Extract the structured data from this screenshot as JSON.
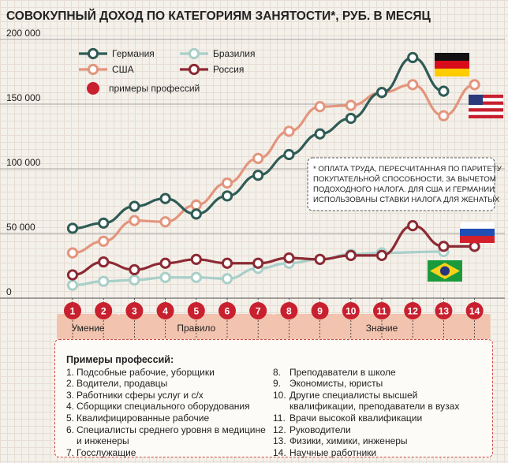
{
  "chart_data": {
    "type": "line",
    "title": "СОВОКУПНЫЙ ДОХОД ПО КАТЕГОРИЯМ ЗАНЯТОСТИ*, РУБ. В МЕСЯЦ",
    "categories": [
      "1",
      "2",
      "3",
      "4",
      "5",
      "6",
      "7",
      "8",
      "9",
      "10",
      "11",
      "12",
      "13",
      "14"
    ],
    "ylim": [
      0,
      200000
    ],
    "yticks": [
      0,
      50000,
      100000,
      150000,
      200000
    ],
    "ytick_labels": [
      "0",
      "50 000",
      "100 000",
      "150 000",
      "200 000"
    ],
    "series": [
      {
        "name": "Германия",
        "color": "#2f5b55",
        "marker_fill": "#ffffff",
        "flag": "germany",
        "values": [
          54000,
          58000,
          71000,
          77000,
          65000,
          79000,
          95000,
          111000,
          127000,
          139000,
          159000,
          186000,
          160000,
          null
        ]
      },
      {
        "name": "США",
        "color": "#e3957d",
        "marker_fill": "#ffffff",
        "flag": "usa",
        "values": [
          35000,
          44000,
          60000,
          59000,
          72000,
          89000,
          108000,
          129000,
          148000,
          149000,
          159000,
          165000,
          141000,
          165000
        ]
      },
      {
        "name": "Бразилия",
        "color": "#a9cfc9",
        "marker_fill": "#ffffff",
        "flag": "brazil",
        "values": [
          10000,
          13000,
          14000,
          16000,
          16000,
          15000,
          23000,
          27000,
          30000,
          34000,
          35000,
          null,
          36000,
          null
        ]
      },
      {
        "name": "Россия",
        "color": "#8c2a33",
        "marker_fill": "#ffffff",
        "flag": "russia",
        "values": [
          18000,
          28000,
          22000,
          27000,
          30000,
          27000,
          27000,
          31000,
          30000,
          33000,
          33000,
          56000,
          40000,
          40000
        ]
      }
    ],
    "legend": {
      "location": "top-left",
      "professions_marker_color": "#c8202f",
      "professions_label": "примеры профессий"
    },
    "groups": [
      {
        "label": "Умение",
        "categories": [
          "1",
          "2"
        ]
      },
      {
        "label": "Правило",
        "categories": [
          "3",
          "4",
          "5",
          "6",
          "7"
        ]
      },
      {
        "label": "Знание",
        "categories": [
          "8",
          "9",
          "10",
          "11",
          "12",
          "13",
          "14"
        ]
      }
    ],
    "category_marker_color": "#c8202f",
    "note": [
      "* ОПЛАТА ТРУДА, ПЕРЕСЧИТАННАЯ ПО ПАРИТЕТУ",
      "ПОКУПАТЕЛЬНОЙ СПОСОБНОСТИ, ЗА ВЫЧЕТОМ",
      "ПОДОХОДНОГО НАЛОГА. ДЛЯ США И ГЕРМАНИИ",
      "ИСПОЛЬЗОВАНЫ СТАВКИ НАЛОГА ДЛЯ ЖЕНАТЫХ"
    ]
  },
  "examples": {
    "title": "Примеры профессий:",
    "left": [
      {
        "num": "1.",
        "text": "Подсобные рабочие, уборщики"
      },
      {
        "num": "2.",
        "text": "Водители, продавцы"
      },
      {
        "num": "3.",
        "text": "Работники сферы услуг и с/х"
      },
      {
        "num": "4.",
        "text": "Сборщики специального оборудования"
      },
      {
        "num": "5.",
        "text": "Квалифицированные рабочие"
      },
      {
        "num": "6.",
        "text": "Специалисты среднего уровня в медицине и инженеры"
      },
      {
        "num": "7.",
        "text": "Госслужащие"
      }
    ],
    "right": [
      {
        "num": "8.",
        "text": "Преподаватели в школе"
      },
      {
        "num": "9.",
        "text": "Экономисты, юристы"
      },
      {
        "num": "10.",
        "text": "Другие специалисты высшей квалификации, преподаватели в вузах"
      },
      {
        "num": "11.",
        "text": "Врачи высокой квалификации"
      },
      {
        "num": "12.",
        "text": "Руководители"
      },
      {
        "num": "13.",
        "text": "Физики, химики, инженеры"
      },
      {
        "num": "14.",
        "text": "Научные работники"
      }
    ]
  }
}
